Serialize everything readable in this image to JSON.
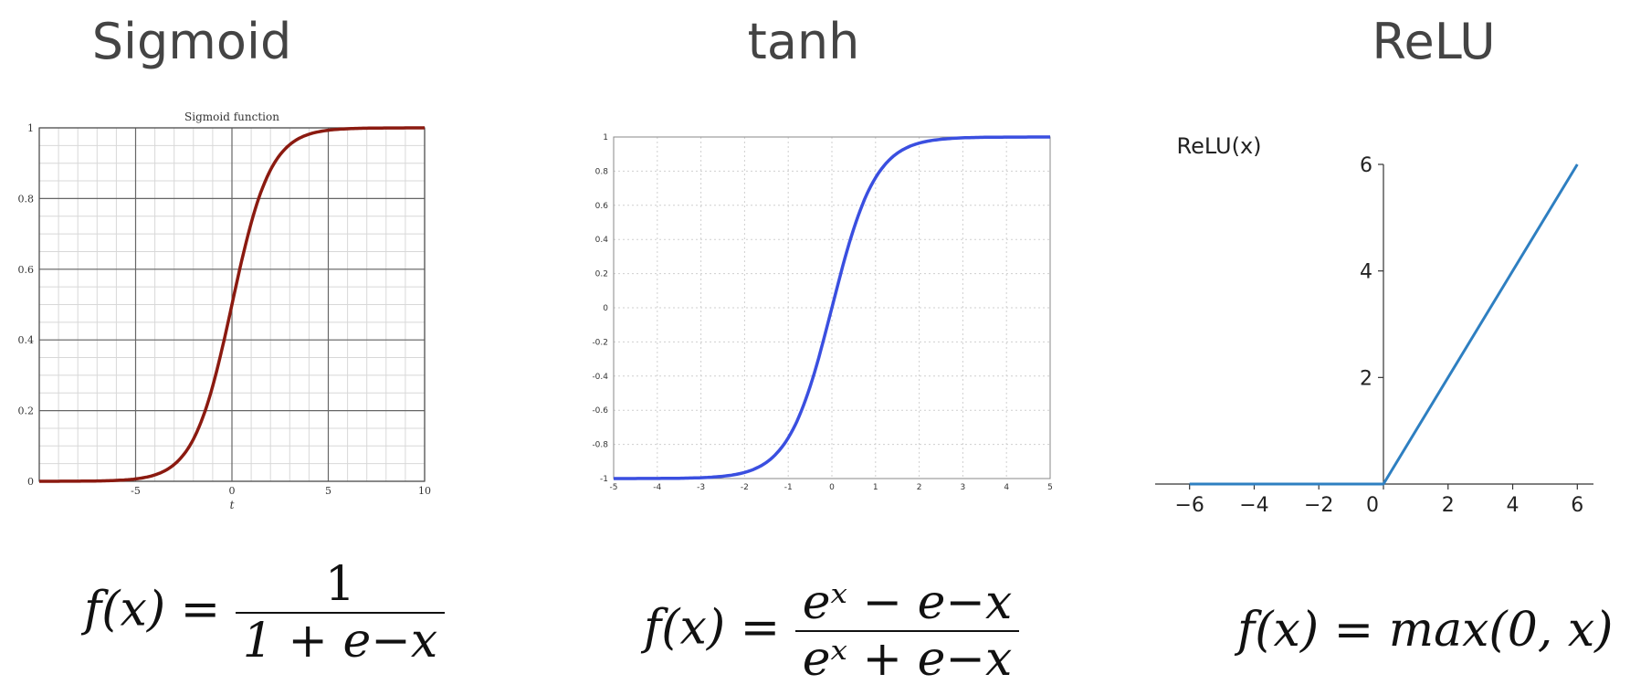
{
  "panels": [
    {
      "title": "Sigmoid"
    },
    {
      "title": "tanh"
    },
    {
      "title": "ReLU"
    }
  ],
  "chart_data": [
    {
      "type": "line",
      "title": "Sigmoid function",
      "xlabel": "t",
      "ylabel": "",
      "xlim": [
        -10,
        10
      ],
      "ylim": [
        0,
        1
      ],
      "grid": true,
      "xticks": [
        -5,
        0,
        5,
        10
      ],
      "yticks": [
        0,
        0.2,
        0.4,
        0.6,
        0.8,
        1
      ],
      "series": [
        {
          "x": [
            -10,
            -8,
            -6,
            -5,
            -4,
            -3,
            -2,
            -1,
            0,
            1,
            2,
            3,
            4,
            5,
            6,
            8,
            10
          ],
          "y": [
            0.0,
            0.0003,
            0.0025,
            0.0067,
            0.018,
            0.047,
            0.119,
            0.269,
            0.5,
            0.731,
            0.881,
            0.953,
            0.982,
            0.993,
            0.998,
            0.9997,
            1.0
          ],
          "color": "#8b1a10"
        }
      ]
    },
    {
      "type": "line",
      "title": "",
      "xlabel": "",
      "ylabel": "",
      "xlim": [
        -5,
        5
      ],
      "ylim": [
        -1,
        1
      ],
      "grid": true,
      "xticks": [
        -5,
        -4,
        -3,
        -2,
        -1,
        0,
        1,
        2,
        3,
        4,
        5
      ],
      "yticks": [
        -1,
        -0.8,
        -0.6,
        -0.4,
        -0.2,
        0,
        0.2,
        0.4,
        0.6,
        0.8,
        1
      ],
      "series": [
        {
          "x": [
            -5,
            -4,
            -3,
            -2,
            -1.5,
            -1,
            -0.5,
            0,
            0.5,
            1,
            1.5,
            2,
            3,
            4,
            5
          ],
          "y": [
            -0.9999,
            -0.9993,
            -0.995,
            -0.964,
            -0.905,
            -0.762,
            -0.462,
            0,
            0.462,
            0.762,
            0.905,
            0.964,
            0.995,
            0.9993,
            0.9999
          ],
          "color": "#3a4fe0"
        }
      ]
    },
    {
      "type": "line",
      "title": "",
      "xlabel": "",
      "ylabel": "ReLU(x)",
      "xlim": [
        -6.5,
        6.5
      ],
      "ylim": [
        0,
        6
      ],
      "grid": false,
      "xticks": [
        -6,
        -4,
        -2,
        0,
        2,
        4,
        6
      ],
      "yticks": [
        2,
        4,
        6
      ],
      "series": [
        {
          "x": [
            -6,
            0,
            6
          ],
          "y": [
            0,
            0,
            6
          ],
          "color": "#2e7fc1"
        }
      ]
    }
  ],
  "formulas": {
    "sigmoid": {
      "lhs": "f(x) =",
      "num": "1",
      "den": "1 + e−x"
    },
    "tanh": {
      "lhs": "f(x) =",
      "num": "eˣ − e−x",
      "den": "eˣ + e−x"
    },
    "relu": {
      "text": "f(x) = max(0, x)"
    }
  }
}
